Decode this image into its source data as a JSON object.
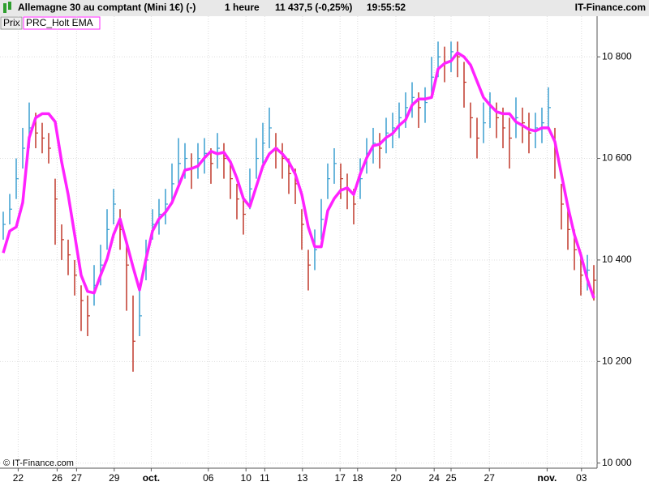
{
  "header": {
    "instrument": "Allemagne 30 au comptant (Mini 1€) (-)",
    "period": "1 heure",
    "quote": "11 437,5 (-0,25%)",
    "time": "19:55:52",
    "site": "IT-Finance.com"
  },
  "footer": "© IT-Finance.com",
  "chart_data": {
    "type": "ohlc",
    "x": [
      0,
      1,
      2,
      3,
      4,
      5,
      6,
      7,
      8,
      9,
      10,
      11,
      12,
      13,
      14,
      15,
      16,
      17,
      18,
      19,
      20,
      21,
      22,
      23,
      24,
      25,
      26,
      27,
      28,
      29,
      30,
      31,
      32,
      33,
      34,
      35,
      36,
      37,
      38,
      39,
      40,
      41,
      42,
      43,
      44,
      45,
      46,
      47,
      48,
      49,
      50,
      51,
      52,
      53,
      54,
      55,
      56,
      57,
      58,
      59,
      60,
      61,
      62,
      63,
      64,
      65,
      66,
      67,
      68,
      69,
      70,
      71,
      72,
      73,
      74,
      75,
      76,
      77,
      78,
      79,
      80,
      81,
      82,
      83,
      84,
      85,
      86,
      87,
      88,
      89,
      90,
      91
    ],
    "xlim": [
      -0.5,
      91.5
    ],
    "xticks": [
      {
        "value": 2.3,
        "label": "22"
      },
      {
        "value": 8.3,
        "label": "26"
      },
      {
        "value": 11.3,
        "label": "27"
      },
      {
        "value": 17.1,
        "label": "29"
      },
      {
        "value": 22.8,
        "label": "oct."
      },
      {
        "value": 31.6,
        "label": "06"
      },
      {
        "value": 37.4,
        "label": "10"
      },
      {
        "value": 40.3,
        "label": "11"
      },
      {
        "value": 46.1,
        "label": "13"
      },
      {
        "value": 51.9,
        "label": "17"
      },
      {
        "value": 54.6,
        "label": "18"
      },
      {
        "value": 60.5,
        "label": "20"
      },
      {
        "value": 66.4,
        "label": "24"
      },
      {
        "value": 69,
        "label": "25"
      },
      {
        "value": 74.9,
        "label": "27"
      },
      {
        "value": 83.8,
        "label": "nov."
      },
      {
        "value": 89.1,
        "label": "03"
      }
    ],
    "ylim": [
      9990,
      10880
    ],
    "yticks": [
      {
        "value": 10000,
        "label": "10 000"
      },
      {
        "value": 10200,
        "label": "10 200"
      },
      {
        "value": 10400,
        "label": "10 400"
      },
      {
        "value": 10600,
        "label": "10 600"
      },
      {
        "value": 10800,
        "label": "10 800"
      }
    ],
    "grid": true,
    "series": [
      {
        "name": "Prix",
        "up_color": "#3a9fd0",
        "down_color": "#c0392b",
        "high": [
          10495,
          10530,
          10600,
          10660,
          10710,
          10690,
          10670,
          10650,
          10560,
          10470,
          10440,
          10400,
          10350,
          10330,
          10390,
          10430,
          10500,
          10540,
          10500,
          10430,
          10330,
          10340,
          10440,
          10500,
          10520,
          10540,
          10590,
          10640,
          10630,
          10610,
          10630,
          10640,
          10620,
          10650,
          10630,
          10590,
          10550,
          10520,
          10580,
          10640,
          10670,
          10700,
          10650,
          10630,
          10600,
          10580,
          10500,
          10420,
          10460,
          10520,
          10590,
          10620,
          10590,
          10570,
          10540,
          10600,
          10640,
          10660,
          10650,
          10680,
          10690,
          10710,
          10730,
          10750,
          10730,
          10740,
          10800,
          10830,
          10820,
          10830,
          10830,
          10790,
          10710,
          10680,
          10710,
          10730,
          10710,
          10700,
          10680,
          10720,
          10700,
          10690,
          10690,
          10700,
          10740,
          10660,
          10550,
          10500,
          10460,
          10410,
          10410,
          10390
        ],
        "low": [
          10440,
          10470,
          10520,
          10580,
          10620,
          10620,
          10610,
          10590,
          10430,
          10400,
          10370,
          10330,
          10260,
          10250,
          10310,
          10350,
          10420,
          10470,
          10420,
          10300,
          10180,
          10250,
          10360,
          10440,
          10450,
          10470,
          10510,
          10550,
          10560,
          10540,
          10560,
          10570,
          10550,
          10580,
          10560,
          10520,
          10480,
          10450,
          10500,
          10560,
          10590,
          10620,
          10580,
          10560,
          10530,
          10510,
          10420,
          10340,
          10380,
          10440,
          10520,
          10550,
          10520,
          10500,
          10470,
          10520,
          10570,
          10590,
          10580,
          10610,
          10620,
          10640,
          10660,
          10680,
          10660,
          10670,
          10720,
          10760,
          10750,
          10770,
          10760,
          10700,
          10640,
          10600,
          10630,
          10660,
          10640,
          10620,
          10580,
          10640,
          10630,
          10610,
          10620,
          10630,
          10660,
          10560,
          10460,
          10420,
          10380,
          10330,
          10340,
          10320
        ],
        "close": [
          10470,
          10500,
          10560,
          10620,
          10660,
          10650,
          10640,
          10620,
          10520,
          10440,
          10410,
          10370,
          10320,
          10290,
          10350,
          10390,
          10460,
          10510,
          10460,
          10390,
          10240,
          10290,
          10400,
          10470,
          10490,
          10510,
          10550,
          10590,
          10600,
          10580,
          10600,
          10610,
          10590,
          10620,
          10600,
          10560,
          10520,
          10490,
          10540,
          10600,
          10630,
          10660,
          10620,
          10600,
          10570,
          10550,
          10470,
          10390,
          10420,
          10480,
          10560,
          10590,
          10560,
          10540,
          10510,
          10560,
          10610,
          10630,
          10620,
          10650,
          10660,
          10680,
          10700,
          10720,
          10700,
          10710,
          10760,
          10800,
          10790,
          10810,
          10800,
          10750,
          10680,
          10640,
          10670,
          10700,
          10680,
          10660,
          10640,
          10680,
          10670,
          10650,
          10660,
          10670,
          10700,
          10620,
          10510,
          10460,
          10420,
          10370,
          10380,
          10360
        ]
      },
      {
        "name": "PRC_Holt EMA",
        "color": "#ff22ff",
        "values": [
          10414,
          10457,
          10465,
          10513,
          10641,
          10680,
          10688,
          10688,
          10672,
          10593,
          10529,
          10450,
          10370,
          10338,
          10335,
          10370,
          10402,
          10450,
          10481,
          10434,
          10386,
          10341,
          10402,
          10457,
          10481,
          10494,
          10513,
          10545,
          10577,
          10580,
          10585,
          10601,
          10614,
          10609,
          10612,
          10593,
          10561,
          10521,
          10505,
          10545,
          10585,
          10609,
          10620,
          10609,
          10593,
          10569,
          10529,
          10465,
          10426,
          10426,
          10497,
          10521,
          10537,
          10542,
          10529,
          10569,
          10601,
          10625,
          10628,
          10641,
          10649,
          10665,
          10676,
          10705,
          10717,
          10717,
          10720,
          10776,
          10787,
          10792,
          10808,
          10800,
          10784,
          10752,
          10720,
          10705,
          10692,
          10688,
          10688,
          10672,
          10665,
          10657,
          10654,
          10660,
          10660,
          10633,
          10569,
          10505,
          10450,
          10410,
          10362,
          10325
        ]
      }
    ]
  }
}
